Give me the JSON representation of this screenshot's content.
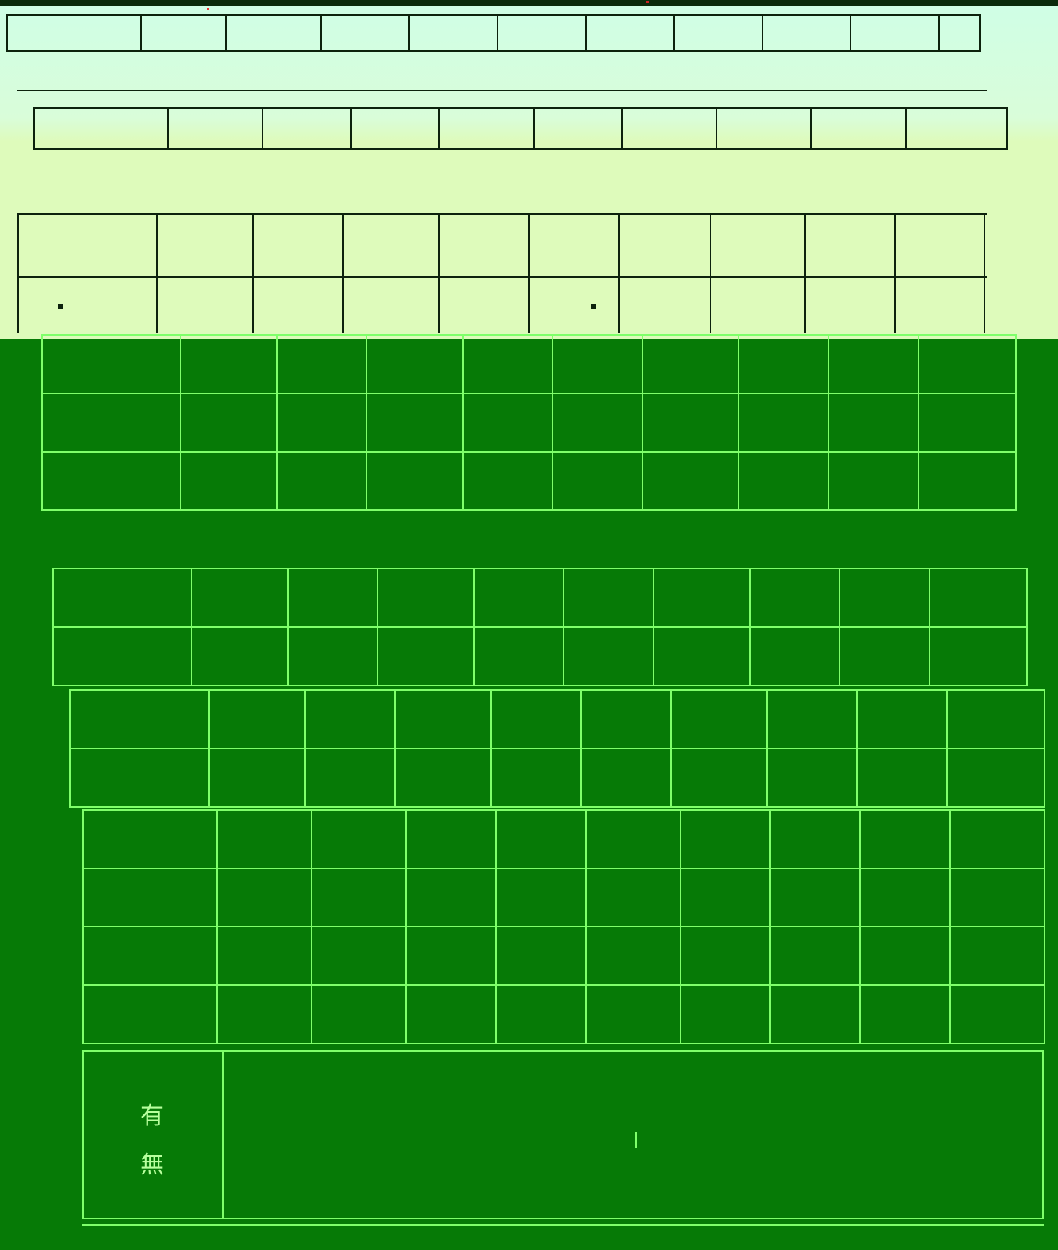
{
  "header_row": {
    "cells": [
      "",
      "",
      "",
      "",
      "",
      "",
      "",
      "",
      "",
      "",
      ""
    ]
  },
  "second_row": {
    "cells": [
      "",
      "",
      "",
      "",
      "",
      "",
      "",
      "",
      "",
      ""
    ]
  },
  "caption": "",
  "grid": {
    "blocks": [
      {
        "rows": [
          [
            "",
            "",
            "",
            "",
            "",
            "",
            "",
            "",
            "",
            ""
          ],
          [
            "",
            "",
            "",
            "",
            "",
            "",
            "",
            "",
            "",
            ""
          ],
          [
            "",
            "",
            "",
            "",
            "",
            "",
            "",
            "",
            "",
            ""
          ]
        ]
      },
      {
        "rows": [
          [
            "",
            "",
            "",
            "",
            "",
            "",
            "",
            "",
            "",
            ""
          ],
          [
            "",
            "",
            "",
            "",
            "",
            "",
            "",
            "",
            "",
            ""
          ]
        ]
      },
      {
        "rows": [
          [
            "",
            "",
            "",
            "",
            "",
            "",
            "",
            "",
            "",
            ""
          ],
          [
            "",
            "",
            "",
            "",
            "",
            "",
            "",
            "",
            "",
            ""
          ]
        ]
      },
      {
        "rows": [
          [
            "",
            "",
            "",
            "",
            "",
            "",
            "",
            "",
            "",
            ""
          ],
          [
            "",
            "",
            "",
            "",
            "",
            "",
            "",
            "",
            "",
            ""
          ],
          [
            "",
            "",
            "",
            "",
            "",
            "",
            "",
            "",
            "",
            ""
          ],
          [
            "",
            "",
            "",
            "",
            "",
            "",
            "",
            "",
            "",
            ""
          ]
        ]
      }
    ]
  },
  "bottom_box": {
    "glyph_top": "有",
    "glyph_bottom": "無"
  }
}
